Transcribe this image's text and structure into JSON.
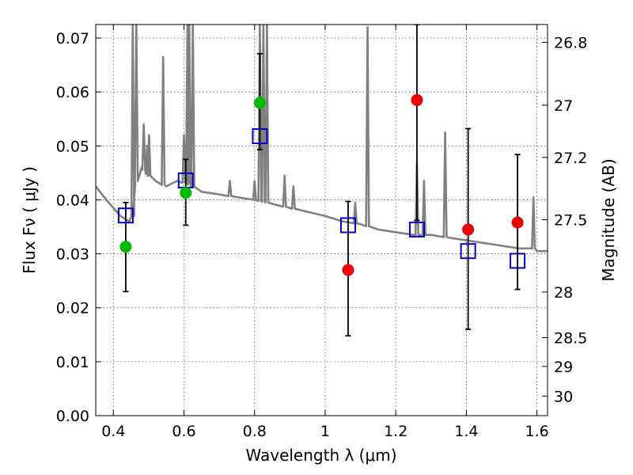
{
  "chart_data": {
    "type": "scatter",
    "xlabel": "Wavelength  λ (μm)",
    "ylabel": "Flux  Fν  ( μJy )",
    "y2label": "Magnitude (AB)",
    "xlim": [
      0.35,
      1.63
    ],
    "ylim": [
      0.0,
      0.0725
    ],
    "xticks": [
      0.4,
      0.6,
      0.8,
      1.0,
      1.2,
      1.4,
      1.6
    ],
    "xtick_labels": [
      "0.4",
      "0.6",
      "0.8",
      "1",
      "1.2",
      "1.4",
      "1.6"
    ],
    "yticks": [
      0.0,
      0.01,
      0.02,
      0.03,
      0.04,
      0.05,
      0.06,
      0.07
    ],
    "ytick_labels": [
      "0.00",
      "0.01",
      "0.02",
      "0.03",
      "0.04",
      "0.05",
      "0.06",
      "0.07"
    ],
    "y2ticks": [
      26.8,
      27,
      27.2,
      27.5,
      28,
      28.5,
      29,
      30
    ],
    "y2tick_labels": [
      "26.8",
      "27",
      "27.2",
      "27.5",
      "28",
      "28.5",
      "29",
      "30"
    ],
    "grid": true,
    "colors": {
      "model": "#808080",
      "green": "#00bb00",
      "red": "#ee0000",
      "square": "#0000cc",
      "errorbar": "#000000"
    },
    "model_spectrum": {
      "continuum": [
        [
          0.35,
          0.0425
        ],
        [
          0.38,
          0.04
        ],
        [
          0.42,
          0.037
        ],
        [
          0.445,
          0.036
        ],
        [
          0.455,
          0.037
        ],
        [
          0.462,
          0.043
        ],
        [
          0.48,
          0.046
        ],
        [
          0.5,
          0.0445
        ],
        [
          0.52,
          0.0435
        ],
        [
          0.55,
          0.0425
        ],
        [
          0.58,
          0.0435
        ],
        [
          0.61,
          0.043
        ],
        [
          0.65,
          0.0415
        ],
        [
          0.7,
          0.041
        ],
        [
          0.75,
          0.0405
        ],
        [
          0.8,
          0.04
        ],
        [
          0.9,
          0.0385
        ],
        [
          1.0,
          0.037
        ],
        [
          1.05,
          0.036
        ],
        [
          1.1,
          0.0355
        ],
        [
          1.15,
          0.0345
        ],
        [
          1.2,
          0.034
        ],
        [
          1.25,
          0.0335
        ],
        [
          1.3,
          0.0335
        ],
        [
          1.35,
          0.033
        ],
        [
          1.4,
          0.0325
        ],
        [
          1.45,
          0.032
        ],
        [
          1.5,
          0.0315
        ],
        [
          1.55,
          0.031
        ],
        [
          1.58,
          0.031
        ],
        [
          1.595,
          0.031
        ],
        [
          1.6,
          0.0305
        ],
        [
          1.63,
          0.0305
        ]
      ],
      "emission_lines": [
        [
          0.455,
          0.0725
        ],
        [
          0.465,
          0.0725
        ],
        [
          0.486,
          0.054
        ],
        [
          0.496,
          0.05
        ],
        [
          0.501,
          0.052
        ],
        [
          0.541,
          0.0665
        ],
        [
          0.6,
          0.052
        ],
        [
          0.61,
          0.0725
        ],
        [
          0.615,
          0.0725
        ],
        [
          0.625,
          0.0725
        ],
        [
          0.73,
          0.0435
        ],
        [
          0.8,
          0.0435
        ],
        [
          0.815,
          0.0725
        ],
        [
          0.825,
          0.0725
        ],
        [
          0.835,
          0.0725
        ],
        [
          0.885,
          0.0445
        ],
        [
          0.91,
          0.0425
        ],
        [
          1.085,
          0.0395
        ],
        [
          1.12,
          0.072
        ],
        [
          1.26,
          0.047
        ],
        [
          1.28,
          0.0435
        ],
        [
          1.34,
          0.0525
        ],
        [
          1.59,
          0.0405
        ]
      ]
    },
    "series": [
      {
        "marker": "circle",
        "color": "green",
        "points": [
          [
            0.435,
            0.0313
          ],
          [
            0.605,
            0.0413
          ],
          [
            0.815,
            0.058
          ]
        ]
      },
      {
        "marker": "circle",
        "color": "red",
        "points": [
          [
            1.065,
            0.027
          ],
          [
            1.26,
            0.0585
          ],
          [
            1.405,
            0.0345
          ],
          [
            1.545,
            0.0358
          ]
        ]
      },
      {
        "marker": "open-square",
        "color": "square",
        "points": [
          [
            0.435,
            0.0371
          ],
          [
            0.605,
            0.0436
          ],
          [
            0.815,
            0.0518
          ],
          [
            1.065,
            0.0353
          ],
          [
            1.26,
            0.0345
          ],
          [
            1.405,
            0.0305
          ],
          [
            1.545,
            0.0287
          ]
        ]
      }
    ],
    "errorbars": [
      {
        "x": 0.435,
        "low": 0.023,
        "high": 0.0395
      },
      {
        "x": 0.605,
        "low": 0.0353,
        "high": 0.0475
      },
      {
        "x": 0.815,
        "low": 0.0493,
        "high": 0.0671
      },
      {
        "x": 1.065,
        "low": 0.0148,
        "high": 0.0397
      },
      {
        "x": 1.26,
        "low": 0.0362,
        "high": 0.0725
      },
      {
        "x": 1.405,
        "low": 0.016,
        "high": 0.0532
      },
      {
        "x": 1.545,
        "low": 0.0234,
        "high": 0.0484
      }
    ]
  }
}
